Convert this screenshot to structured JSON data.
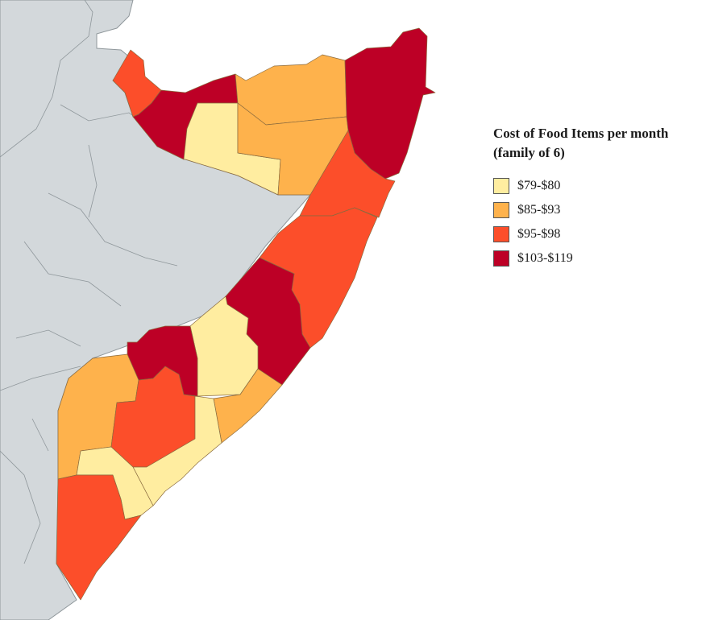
{
  "legend": {
    "title_line1": "Cost of Food Items per month",
    "title_line2": "(family of 6)",
    "items": [
      {
        "label": "$79-$80",
        "color": "#ffeda0"
      },
      {
        "label": "$85-$93",
        "color": "#feb24c"
      },
      {
        "label": "$95-$98",
        "color": "#fc4e2a"
      },
      {
        "label": "$103-$119",
        "color": "#bd0026"
      }
    ]
  },
  "colors": {
    "neighbor_land": "#d3d8db",
    "border": "#8f979b",
    "sea": "#ffffff"
  }
}
